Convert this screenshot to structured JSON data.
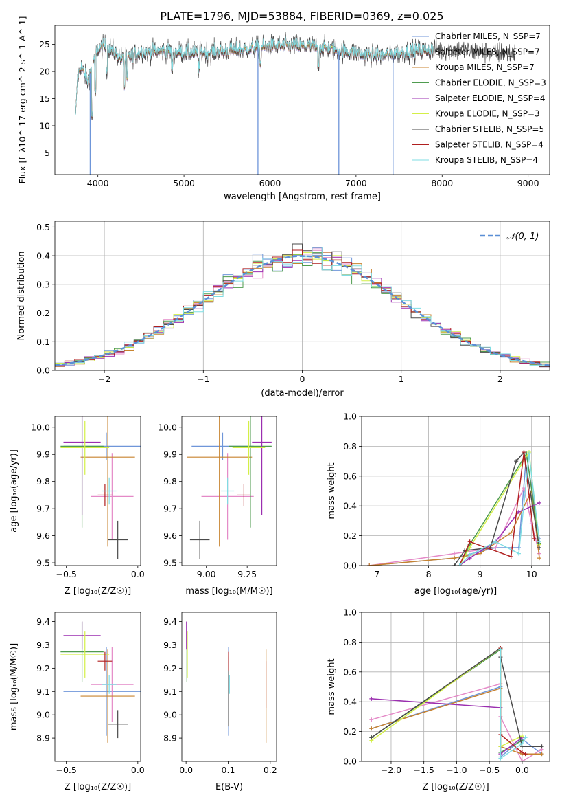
{
  "figure_title": "PLATE=1796, MJD=53884, FIBERID=0369, z=0.025",
  "model_colors": [
    "#6f96d9",
    "#e489c7",
    "#c8832f",
    "#4f9c4f",
    "#9b2fb0",
    "#d4ef47",
    "#4a4a4a",
    "#b01f1f",
    "#7fdde3"
  ],
  "chart_data": [
    {
      "id": "spectrum",
      "type": "line",
      "xlabel": "wavelength [Angstrom, rest frame]",
      "ylabel": "Flux [f_λ10^-17 erg cm^-2 s^-1 A^-1]",
      "xlim": [
        3500,
        9250
      ],
      "ylim": [
        1,
        28.5
      ],
      "xticks": [
        4000,
        5000,
        6000,
        7000,
        8000,
        9000
      ],
      "yticks": [
        5,
        10,
        15,
        20,
        25
      ],
      "grid": false,
      "legend_position": "upper-right",
      "legend": [
        "Chabrier MILES, N_SSP=7",
        "Salpeter MILES, N_SSP=7",
        "Kroupa MILES, N_SSP=7",
        "Chabrier ELODIE, N_SSP=3",
        "Salpeter ELODIE, N_SSP=4",
        "Kroupa ELODIE, N_SSP=3",
        "Chabrier STELIB, N_SSP=5",
        "Salpeter STELIB, N_SSP=4",
        "Kroupa STELIB, N_SSP=4"
      ],
      "continuum_anchors": {
        "wavelength": [
          3740,
          3800,
          3880,
          3950,
          4000,
          4100,
          4300,
          4500,
          4800,
          5000,
          5300,
          5600,
          6000,
          6300,
          6600,
          6900,
          7100,
          7300,
          7600,
          7900,
          8200,
          8500,
          8850
        ],
        "flux": [
          17,
          21,
          18,
          22,
          24,
          24.6,
          22,
          23.5,
          23.6,
          23.3,
          23.4,
          23.8,
          24.5,
          24.6,
          24.3,
          23.5,
          23,
          22.8,
          23.5,
          23.9,
          23.8,
          23.4,
          23.2
        ]
      },
      "model_dips": [
        {
          "model": "Kroupa STELIB",
          "wavelength": 5860,
          "flux": 1
        },
        {
          "model": "Kroupa ELODIE",
          "wavelength": 6800,
          "flux": 1
        },
        {
          "model": "Kroupa MILES",
          "wavelength": 7430,
          "flux": 1
        },
        {
          "model": "Kroupa ELODIE",
          "wavelength": 3910,
          "flux": 1
        }
      ]
    },
    {
      "id": "residual_distribution",
      "type": "step",
      "xlabel": "(data-model)/error",
      "ylabel": "Normed distribution",
      "xlim": [
        -2.5,
        2.5
      ],
      "ylim": [
        0,
        0.52
      ],
      "xticks": [
        -2,
        -1,
        0,
        1,
        2
      ],
      "yticks": [
        0.0,
        0.1,
        0.2,
        0.3,
        0.4,
        0.5
      ],
      "grid": true,
      "legend_position": "upper-right",
      "reference_curve": {
        "label": "𝒩(0, 1)",
        "mean": 0,
        "sigma": 1,
        "color": "#5a8fd6"
      },
      "bin_edges_start": -2.5,
      "bin_width": 0.1
    },
    {
      "id": "age_vs_Z",
      "type": "errorbar",
      "xlabel": "Z [log₁₀(Z/Z☉)]",
      "ylabel": "age  [log₁₀(age/yr)]",
      "xlim": [
        -0.58,
        0.02
      ],
      "ylim": [
        9.49,
        10.04
      ],
      "xticks": [
        -0.5,
        0.0
      ],
      "xtick_labels": [
        "−0.5",
        "0.0"
      ],
      "yticks": [
        9.5,
        9.6,
        9.7,
        9.8,
        9.9,
        10.0
      ],
      "points": [
        {
          "x": -0.22,
          "xerr": 0.3,
          "y": 9.93,
          "yerr": 0.05
        },
        {
          "x": -0.18,
          "xerr": 0.15,
          "y": 9.745,
          "yerr": 0.16
        },
        {
          "x": -0.21,
          "xerr": 0.19,
          "y": 9.89,
          "yerr": 0.33
        },
        {
          "x": -0.39,
          "xerr": 0.15,
          "y": 9.93,
          "yerr": 0.3
        },
        {
          "x": -0.39,
          "xerr": 0.13,
          "y": 9.945,
          "yerr": 0.27
        },
        {
          "x": -0.37,
          "xerr": 0.17,
          "y": 9.925,
          "yerr": 0.1
        },
        {
          "x": -0.14,
          "xerr": 0.07,
          "y": 9.585,
          "yerr": 0.07
        },
        {
          "x": -0.23,
          "xerr": 0.05,
          "y": 9.75,
          "yerr": 0.04
        },
        {
          "x": -0.2,
          "xerr": 0.05,
          "y": 9.765,
          "yerr": 0.05
        }
      ]
    },
    {
      "id": "age_vs_mass",
      "type": "errorbar",
      "xlabel": "mass [log₁₀(M/M☉)]",
      "ylabel": "",
      "xlim": [
        8.85,
        9.43
      ],
      "ylim": [
        9.49,
        10.04
      ],
      "xticks": [
        9.0,
        9.25
      ],
      "xtick_labels": [
        "9.00",
        "9.25"
      ],
      "yticks": [
        9.5,
        9.6,
        9.7,
        9.8,
        9.9,
        10.0
      ],
      "points": [
        {
          "x": 9.1,
          "xerr": 0.19,
          "y": 9.93,
          "yerr": 0.05
        },
        {
          "x": 9.13,
          "xerr": 0.16,
          "y": 9.745,
          "yerr": 0.16
        },
        {
          "x": 9.08,
          "xerr": 0.2,
          "y": 9.89,
          "yerr": 0.33
        },
        {
          "x": 9.27,
          "xerr": 0.13,
          "y": 9.93,
          "yerr": 0.3
        },
        {
          "x": 9.34,
          "xerr": 0.06,
          "y": 9.945,
          "yerr": 0.27
        },
        {
          "x": 9.26,
          "xerr": 0.1,
          "y": 9.925,
          "yerr": 0.1
        },
        {
          "x": 8.96,
          "xerr": 0.06,
          "y": 9.585,
          "yerr": 0.07
        },
        {
          "x": 9.23,
          "xerr": 0.04,
          "y": 9.75,
          "yerr": 0.04
        },
        {
          "x": 9.13,
          "xerr": 0.04,
          "y": 9.765,
          "yerr": 0.05
        }
      ]
    },
    {
      "id": "mass_weight_vs_age",
      "type": "line",
      "xlabel": "age  [log₁₀(age/yr)]",
      "ylabel": "mass weight",
      "xlim": [
        6.7,
        10.35
      ],
      "ylim": [
        0,
        1
      ],
      "xticks": [
        7,
        8,
        9,
        10
      ],
      "yticks": [
        0.0,
        0.2,
        0.4,
        0.6,
        0.8,
        1.0
      ],
      "grid": true,
      "series": [
        {
          "points": [
            [
              6.85,
              0.0
            ],
            [
              8.5,
              0.05
            ],
            [
              9.3,
              0.12
            ],
            [
              9.75,
              0.12
            ],
            [
              9.9,
              0.75
            ],
            [
              10.15,
              0.18
            ]
          ]
        },
        {
          "points": [
            [
              6.85,
              0.0
            ],
            [
              8.5,
              0.08
            ],
            [
              9.3,
              0.12
            ],
            [
              9.85,
              0.52
            ],
            [
              10.0,
              0.28
            ],
            [
              10.15,
              0.08
            ]
          ]
        },
        {
          "points": [
            [
              6.85,
              0.0
            ],
            [
              8.5,
              0.05
            ],
            [
              9.0,
              0.08
            ],
            [
              9.6,
              0.22
            ],
            [
              10.0,
              0.5
            ],
            [
              10.15,
              0.05
            ]
          ]
        },
        {
          "points": [
            [
              8.6,
              0.0
            ],
            [
              8.8,
              0.14
            ],
            [
              9.9,
              0.75
            ],
            [
              10.15,
              0.15
            ]
          ]
        },
        {
          "points": [
            [
              8.6,
              0.0
            ],
            [
              8.8,
              0.05
            ],
            [
              9.3,
              0.16
            ],
            [
              9.75,
              0.36
            ],
            [
              10.15,
              0.42
            ]
          ]
        },
        {
          "points": [
            [
              8.6,
              0.0
            ],
            [
              8.8,
              0.12
            ],
            [
              9.95,
              0.76
            ],
            [
              10.15,
              0.14
            ]
          ]
        },
        {
          "points": [
            [
              8.5,
              0.0
            ],
            [
              8.7,
              0.1
            ],
            [
              9.2,
              0.12
            ],
            [
              9.7,
              0.7
            ],
            [
              9.85,
              0.76
            ],
            [
              10.15,
              0.12
            ]
          ]
        },
        {
          "points": [
            [
              8.6,
              0.0
            ],
            [
              8.8,
              0.16
            ],
            [
              9.6,
              0.06
            ],
            [
              9.85,
              0.76
            ],
            [
              10.05,
              0.18
            ]
          ]
        },
        {
          "points": [
            [
              8.6,
              0.0
            ],
            [
              8.8,
              0.07
            ],
            [
              9.3,
              0.16
            ],
            [
              9.75,
              0.08
            ],
            [
              9.95,
              0.75
            ],
            [
              10.15,
              0.16
            ]
          ]
        }
      ]
    },
    {
      "id": "mass_vs_Z",
      "type": "errorbar",
      "xlabel": "Z [log₁₀(Z/Z☉)]",
      "ylabel": "mass [log₁₀(M/M☉)]",
      "xlim": [
        -0.58,
        0.02
      ],
      "ylim": [
        8.8,
        9.44
      ],
      "xticks": [
        -0.5,
        0.0
      ],
      "xtick_labels": [
        "−0.5",
        "0.0"
      ],
      "yticks": [
        8.9,
        9.0,
        9.1,
        9.2,
        9.3,
        9.4
      ],
      "points": [
        {
          "x": -0.22,
          "xerr": 0.3,
          "y": 9.1,
          "yerr": 0.19
        },
        {
          "x": -0.18,
          "xerr": 0.15,
          "y": 9.13,
          "yerr": 0.16
        },
        {
          "x": -0.21,
          "xerr": 0.19,
          "y": 9.08,
          "yerr": 0.2
        },
        {
          "x": -0.39,
          "xerr": 0.15,
          "y": 9.27,
          "yerr": 0.13
        },
        {
          "x": -0.39,
          "xerr": 0.13,
          "y": 9.34,
          "yerr": 0.06
        },
        {
          "x": -0.37,
          "xerr": 0.17,
          "y": 9.26,
          "yerr": 0.1
        },
        {
          "x": -0.14,
          "xerr": 0.07,
          "y": 8.96,
          "yerr": 0.06
        },
        {
          "x": -0.23,
          "xerr": 0.05,
          "y": 9.23,
          "yerr": 0.04
        },
        {
          "x": -0.2,
          "xerr": 0.05,
          "y": 9.13,
          "yerr": 0.04
        }
      ]
    },
    {
      "id": "mass_vs_EBV",
      "type": "errorbar",
      "xlabel": "E(B-V)",
      "ylabel": "",
      "xlim": [
        -0.01,
        0.215
      ],
      "ylim": [
        8.8,
        9.44
      ],
      "xticks": [
        0.0,
        0.1,
        0.2
      ],
      "xtick_labels": [
        "0.0",
        "0.1",
        "0.2"
      ],
      "yticks": [
        8.9,
        9.0,
        9.1,
        9.2,
        9.3,
        9.4
      ],
      "points": [
        {
          "x": 0.101,
          "xerr": 0.0,
          "y": 9.1,
          "yerr": 0.19
        },
        {
          "x": 0.19,
          "xerr": 0.0,
          "y": 9.13,
          "yerr": 0.1
        },
        {
          "x": 0.19,
          "xerr": 0.0,
          "y": 9.08,
          "yerr": 0.2
        },
        {
          "x": 0.002,
          "xerr": 0.0,
          "y": 9.27,
          "yerr": 0.13
        },
        {
          "x": 0.001,
          "xerr": 0.0,
          "y": 9.34,
          "yerr": 0.06
        },
        {
          "x": 0.003,
          "xerr": 0.0,
          "y": 9.26,
          "yerr": 0.1
        },
        {
          "x": 0.101,
          "xerr": 0.0,
          "y": 9.1,
          "yerr": 0.15
        },
        {
          "x": 0.101,
          "xerr": 0.0,
          "y": 9.23,
          "yerr": 0.04
        },
        {
          "x": 0.103,
          "xerr": 0.0,
          "y": 9.13,
          "yerr": 0.04
        }
      ]
    },
    {
      "id": "mass_weight_vs_Z",
      "type": "line",
      "xlabel": "Z [log₁₀(Z/Z☉)]",
      "ylabel": "mass weight",
      "xlim": [
        -2.45,
        0.42
      ],
      "ylim": [
        0,
        1
      ],
      "xticks": [
        -2.0,
        -1.5,
        -1.0,
        -0.5,
        0.0
      ],
      "xtick_labels": [
        "−2.0",
        "−1.5",
        "−1.0",
        "−0.5",
        "0.0"
      ],
      "yticks": [
        0.0,
        0.2,
        0.4,
        0.6,
        0.8,
        1.0
      ],
      "grid": true,
      "series": [
        {
          "points": [
            [
              -2.3,
              0.22
            ],
            [
              -0.33,
              0.5
            ],
            [
              -0.33,
              0.03
            ],
            [
              0.0,
              0.15
            ],
            [
              0.3,
              0.05
            ]
          ]
        },
        {
          "points": [
            [
              -2.3,
              0.28
            ],
            [
              -0.33,
              0.52
            ],
            [
              -0.33,
              0.3
            ],
            [
              0.0,
              0.0
            ],
            [
              0.3,
              0.08
            ]
          ]
        },
        {
          "points": [
            [
              -2.3,
              0.22
            ],
            [
              -0.33,
              0.49
            ],
            [
              -0.33,
              0.1
            ],
            [
              0.0,
              0.05
            ],
            [
              0.3,
              0.05
            ]
          ]
        },
        {
          "points": [
            [
              -2.3,
              0.16
            ],
            [
              -0.33,
              0.75
            ],
            [
              -0.33,
              0.06
            ],
            [
              0.0,
              0.14
            ]
          ]
        },
        {
          "points": [
            [
              -2.3,
              0.42
            ],
            [
              -0.33,
              0.36
            ],
            [
              -0.33,
              0.05
            ],
            [
              0.0,
              0.16
            ]
          ]
        },
        {
          "points": [
            [
              -2.3,
              0.14
            ],
            [
              -0.33,
              0.76
            ],
            [
              -0.33,
              0.1
            ],
            [
              0.0,
              0.17
            ]
          ]
        },
        {
          "points": [
            [
              -2.3,
              0.16
            ],
            [
              -0.33,
              0.76
            ],
            [
              -0.33,
              0.7
            ],
            [
              0.0,
              0.1
            ],
            [
              0.3,
              0.1
            ]
          ]
        },
        {
          "points": [
            [
              -0.33,
              0.76
            ],
            [
              -0.33,
              0.18
            ],
            [
              0.0,
              0.06
            ],
            [
              0.05,
              0.05
            ]
          ]
        },
        {
          "points": [
            [
              -0.33,
              0.75
            ],
            [
              -0.33,
              0.02
            ],
            [
              0.0,
              0.12
            ],
            [
              0.05,
              0.16
            ]
          ]
        }
      ]
    }
  ]
}
